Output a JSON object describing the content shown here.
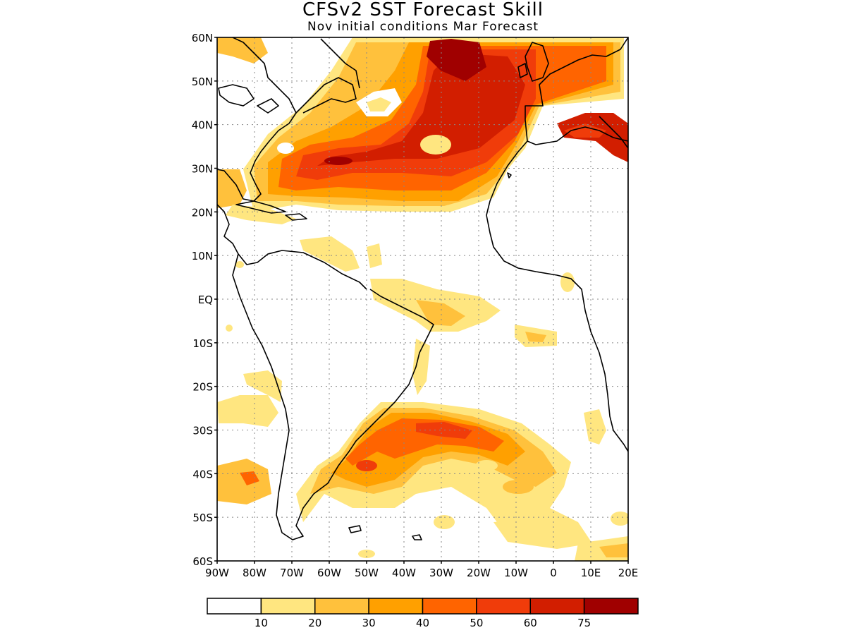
{
  "title": "CFSv2 SST Forecast Skill",
  "subtitle": "Nov initial conditions   Mar Forecast",
  "map": {
    "lon_range": [
      -90,
      20
    ],
    "lat_range": [
      -60,
      60
    ],
    "lat_ticks": [
      "60N",
      "50N",
      "40N",
      "30N",
      "20N",
      "10N",
      "EQ",
      "10S",
      "20S",
      "30S",
      "40S",
      "50S",
      "60S"
    ],
    "lon_ticks": [
      "90W",
      "80W",
      "70W",
      "60W",
      "50W",
      "40W",
      "30W",
      "20W",
      "10W",
      "0",
      "10E",
      "20E"
    ],
    "gridlines": "dotted"
  },
  "colorbar": {
    "labels": [
      "10",
      "20",
      "30",
      "40",
      "50",
      "60",
      "75"
    ],
    "colors": [
      "#ffffff",
      "#ffe680",
      "#ffc13c",
      "#ffa000",
      "#ff6400",
      "#f03c0a",
      "#d21e00",
      "#a00000"
    ]
  },
  "skill_colors": {
    "c10": "#ffe680",
    "c20": "#ffc13c",
    "c30": "#ffa000",
    "c40": "#ff6400",
    "c50": "#f03c0a",
    "c60": "#d21e00",
    "c75": "#a00000"
  }
}
